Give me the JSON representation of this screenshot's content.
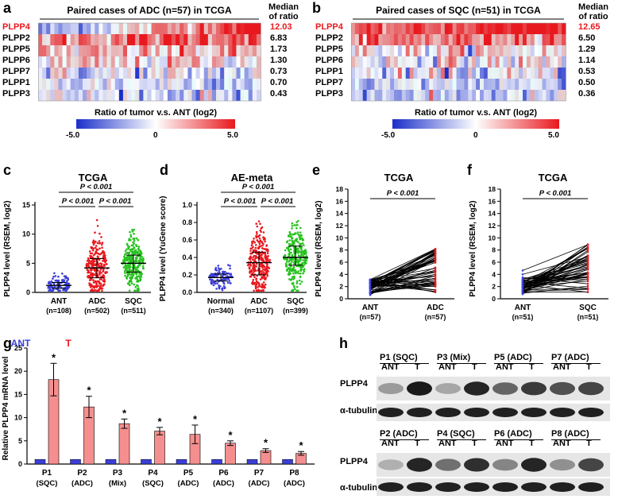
{
  "panels": {
    "a": "a",
    "b": "b",
    "c": "c",
    "d": "d",
    "e": "e",
    "f": "f",
    "g": "g",
    "h": "h"
  },
  "heatmap_a": {
    "title": "Paired cases of ADC (n=57) in TCGA",
    "median_header_1": "Median",
    "median_header_2": "of ratio",
    "genes": [
      "PLPP4",
      "PLPP2",
      "PLPP5",
      "PLPP6",
      "PLPP7",
      "PLPP1",
      "PLPP3"
    ],
    "medians": [
      "12.03",
      "6.83",
      "1.73",
      "1.30",
      "0.73",
      "0.70",
      "0.43"
    ],
    "highlight_color": "#e8191e",
    "colorbar_title": "Ratio of tumor v.s. ANT (log2)",
    "ticks": [
      "-5.0",
      "0",
      "5.0"
    ]
  },
  "heatmap_b": {
    "title": "Paired cases of SQC (n=51) in TCGA",
    "median_header_1": "Median",
    "median_header_2": "of ratio",
    "genes": [
      "PLPP4",
      "PLPP2",
      "PLPP5",
      "PLPP6",
      "PLPP1",
      "PLPP7",
      "PLPP3"
    ],
    "medians": [
      "12.65",
      "6.50",
      "1.29",
      "1.14",
      "0.53",
      "0.50",
      "0.36"
    ],
    "highlight_color": "#e8191e",
    "colorbar_title": "Ratio of tumor v.s. ANT (log2)",
    "ticks": [
      "-5.0",
      "0",
      "5.0"
    ]
  },
  "panel_c": {
    "title": "TCGA",
    "ylabel": "PLPP4 level (RSEM, log2)",
    "yticks": [
      "0",
      "5",
      "10",
      "15"
    ],
    "groups": [
      {
        "name": "ANT",
        "n": "(n=108)",
        "color": "#3b3fd9"
      },
      {
        "name": "ADC",
        "n": "(n=502)",
        "color": "#e8191e"
      },
      {
        "name": "SQC",
        "n": "(n=511)",
        "color": "#27c21f"
      }
    ],
    "sig_top": "P < 0.001",
    "sig_left": "P < 0.001",
    "sig_right": "P < 0.001",
    "means": [
      1.2,
      4.2,
      5.0
    ],
    "sd_low": [
      0.7,
      2.5,
      3.5
    ],
    "sd_high": [
      1.7,
      5.8,
      6.4
    ]
  },
  "panel_d": {
    "title": "AE-meta",
    "ylabel": "PLPP4 level (YuGene score)",
    "yticks": [
      "0.0",
      "0.2",
      "0.4",
      "0.6",
      "0.8",
      "1.0"
    ],
    "groups": [
      {
        "name": "Normal",
        "n": "(n=340)",
        "color": "#3b3fd9"
      },
      {
        "name": "ADC",
        "n": "(n=1107)",
        "color": "#e8191e"
      },
      {
        "name": "SQC",
        "n": "(n=399)",
        "color": "#27c21f"
      }
    ],
    "sig_top": "P < 0.001",
    "sig_left": "P < 0.001",
    "sig_right": "P < 0.001",
    "means": [
      0.17,
      0.34,
      0.4
    ],
    "sd_low": [
      0.13,
      0.2,
      0.31
    ],
    "sd_high": [
      0.21,
      0.46,
      0.53
    ]
  },
  "panel_e": {
    "title": "TCGA",
    "ylabel": "PLPP4 level (RSEM, log2)",
    "yticks": [
      "0",
      "2",
      "4",
      "6",
      "8",
      "10",
      "12",
      "14",
      "16",
      "18"
    ],
    "groups": [
      {
        "name": "ANT",
        "n": "(n=57)"
      },
      {
        "name": "ADC",
        "n": "(n=57)"
      }
    ],
    "sig": "P < 0.001"
  },
  "panel_f": {
    "title": "TCGA",
    "ylabel": "PLPP4 level (RSEM, log2)",
    "yticks": [
      "0",
      "2",
      "4",
      "6",
      "8",
      "10",
      "12",
      "14",
      "16",
      "18"
    ],
    "groups": [
      {
        "name": "ANT",
        "n": "(n=51)"
      },
      {
        "name": "SQC",
        "n": "(n=51)"
      }
    ],
    "sig": "P < 0.001"
  },
  "panel_g": {
    "legend_ant": "ANT",
    "legend_t": "T",
    "ant_color": "#3b3fd9",
    "t_color": "#f58f8f",
    "ylabel": "Relative PLPP4 mRNA level",
    "yticks": [
      "0",
      "5",
      "10",
      "15",
      "20",
      "25"
    ],
    "star": "*",
    "chart_data": {
      "type": "bar",
      "categories": [
        "P1",
        "P2",
        "P3",
        "P4",
        "P5",
        "P6",
        "P7",
        "P8"
      ],
      "subtypes": [
        "(SQC)",
        "(ADC)",
        "(Mix)",
        "(SQC)",
        "(ADC)",
        "(ADC)",
        "(ADC)",
        "(ADC)"
      ],
      "series": [
        {
          "name": "ANT",
          "values": [
            1,
            1,
            1,
            1,
            1,
            1,
            1,
            1
          ],
          "err": [
            0.1,
            0.1,
            0.1,
            0.1,
            0.1,
            0.1,
            0.1,
            0.1
          ]
        },
        {
          "name": "T",
          "values": [
            18.2,
            12.3,
            8.7,
            7.1,
            6.4,
            4.5,
            2.9,
            2.3
          ],
          "err": [
            3.5,
            2.3,
            1.0,
            0.8,
            2.0,
            0.5,
            0.4,
            0.4
          ]
        }
      ],
      "ylim": [
        0,
        25
      ]
    }
  },
  "panel_h": {
    "top_headers": [
      "P1 (SQC)",
      "P3 (Mix)",
      "P5 (ADC)",
      "P7 (ADC)"
    ],
    "bottom_headers": [
      "P2 (ADC)",
      "P4 (SQC)",
      "P6 (ADC)",
      "P8 (ADC)"
    ],
    "ant": "ANT",
    "t": "T",
    "rows": [
      "PLPP4",
      "α-tubulin"
    ]
  }
}
